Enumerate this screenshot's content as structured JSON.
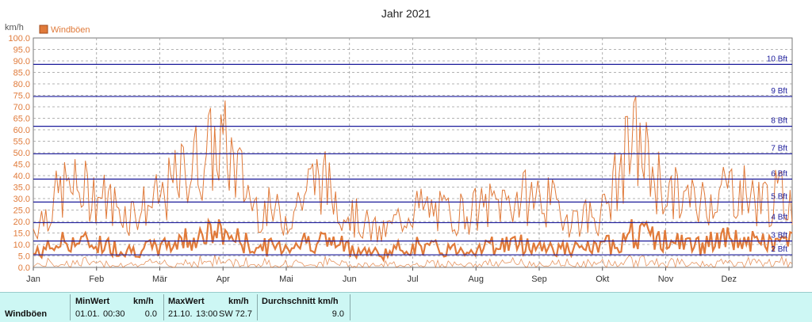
{
  "chart_data": {
    "type": "line",
    "title": "Jahr 2021",
    "ylabel": "km/h",
    "ylim": [
      0,
      100
    ],
    "yticks": [
      "0.0",
      "5.0",
      "10.0",
      "15.0",
      "20.0",
      "25.0",
      "30.0",
      "35.0",
      "40.0",
      "45.0",
      "50.0",
      "55.0",
      "60.0",
      "65.0",
      "70.0",
      "75.0",
      "80.0",
      "85.0",
      "90.0",
      "95.0",
      "100.0"
    ],
    "x_tick_labels": [
      "Jan",
      "Feb",
      "Mär",
      "Apr",
      "Mai",
      "Jun",
      "Jul",
      "Aug",
      "Sep",
      "Okt",
      "Nov",
      "Dez"
    ],
    "legend": {
      "label": "Windböen",
      "color": "#e07a3a",
      "position": "top-left"
    },
    "grid": true,
    "beaufort_lines": [
      {
        "label": "2 Bft",
        "value": 5.5
      },
      {
        "label": "3 Bft",
        "value": 11.5
      },
      {
        "label": "4 Bft",
        "value": 19.5
      },
      {
        "label": "5 Bft",
        "value": 28.5
      },
      {
        "label": "6 Bft",
        "value": 38.5
      },
      {
        "label": "7 Bft",
        "value": 49.5
      },
      {
        "label": "8 Bft",
        "value": 61.5
      },
      {
        "label": "9 Bft",
        "value": 74.5
      },
      {
        "label": "10 Bft",
        "value": 88.5
      }
    ],
    "series": [
      {
        "name": "Windböen",
        "color": "#e07a3a",
        "x": [
          "01.01.",
          "15.01.",
          "01.02.",
          "15.02.",
          "01.03.",
          "15.03.",
          "01.04.",
          "15.04.",
          "01.05.",
          "15.05.",
          "01.06.",
          "15.06.",
          "01.07.",
          "15.07.",
          "01.08.",
          "15.08.",
          "01.09.",
          "15.09.",
          "01.10.",
          "15.10.",
          "01.11.",
          "15.11.",
          "01.12.",
          "15.12.",
          "31.12."
        ],
        "max": [
          22,
          45,
          42,
          30,
          38,
          58,
          70,
          35,
          28,
          52,
          30,
          18,
          34,
          30,
          32,
          38,
          40,
          28,
          30,
          72,
          42,
          36,
          46,
          38,
          40
        ],
        "mean": [
          6,
          12,
          11,
          8,
          9,
          14,
          16,
          9,
          10,
          13,
          9,
          6,
          10,
          8,
          9,
          11,
          10,
          8,
          9,
          16,
          12,
          10,
          13,
          11,
          12
        ]
      }
    ]
  },
  "stats": {
    "row_label": "Windböen",
    "min_header": "MinWert",
    "min_unit": "km/h",
    "min_date": "01.01.",
    "min_time": "00:30",
    "min_value": "0.0",
    "max_header": "MaxWert",
    "max_unit": "km/h",
    "max_date": "21.10.",
    "max_time": "13:00",
    "max_dir": "SW",
    "max_value": "72.7",
    "avg_header": "Durchschnitt km/h",
    "avg_value": "9.0"
  },
  "colors": {
    "series": "#e07a3a",
    "beaufort": "#1a1a9a",
    "grid": "#9a9a9a",
    "stats_bg": "#cdf7f4"
  }
}
